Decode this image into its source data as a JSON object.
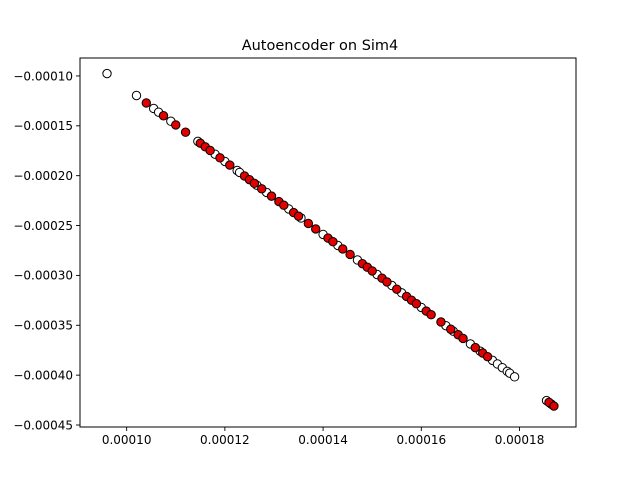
{
  "chart_data": {
    "type": "scatter",
    "title": "Autoencoder on Sim4",
    "xlabel": "",
    "ylabel": "",
    "xlim": [
      9.05e-05,
      0.0001915
    ],
    "ylim": [
      -0.000452,
      -8.2e-05
    ],
    "grid": false,
    "legend": "none",
    "x_ticks": [
      {
        "value": 0.0001,
        "label": "0.00010"
      },
      {
        "value": 0.00012,
        "label": "0.00012"
      },
      {
        "value": 0.00014,
        "label": "0.00014"
      },
      {
        "value": 0.00016,
        "label": "0.00016"
      },
      {
        "value": 0.00018,
        "label": "0.00018"
      }
    ],
    "y_ticks": [
      {
        "value": -0.0001,
        "label": "−0.00010"
      },
      {
        "value": -0.00015,
        "label": "−0.00015"
      },
      {
        "value": -0.0002,
        "label": "−0.00020"
      },
      {
        "value": -0.00025,
        "label": "−0.00025"
      },
      {
        "value": -0.0003,
        "label": "−0.00030"
      },
      {
        "value": -0.00035,
        "label": "−0.00035"
      },
      {
        "value": -0.0004,
        "label": "−0.00040"
      },
      {
        "value": -0.00045,
        "label": "−0.00045"
      }
    ],
    "series": [
      {
        "color": "#ffffff",
        "edge_color": "#000000",
        "points": [
          [
            9.6e-05,
            -9.76e-05
          ],
          [
            0.000102,
            -0.0001196
          ],
          [
            0.0001055,
            -0.0001326
          ],
          [
            0.0001065,
            -0.0001363
          ],
          [
            0.000109,
            -0.0001454
          ],
          [
            0.0001145,
            -0.0001656
          ],
          [
            0.000118,
            -0.0001784
          ],
          [
            0.00012,
            -0.0001857
          ],
          [
            0.0001225,
            -0.0001948
          ],
          [
            0.000123,
            -0.0001967
          ],
          [
            0.0001265,
            -0.0002095
          ],
          [
            0.0001285,
            -0.0002168
          ],
          [
            0.000133,
            -0.0002333
          ],
          [
            0.0001355,
            -0.0002424
          ],
          [
            0.00014,
            -0.0002589
          ],
          [
            0.000143,
            -0.0002699
          ],
          [
            0.000147,
            -0.0002845
          ],
          [
            0.000151,
            -0.0002991
          ],
          [
            0.000154,
            -0.0003101
          ],
          [
            0.000156,
            -0.0003175
          ],
          [
            0.00016,
            -0.0003321
          ],
          [
            0.000165,
            -0.0003504
          ],
          [
            0.0001665,
            -0.0003559
          ],
          [
            0.00017,
            -0.0003687
          ],
          [
            0.000172,
            -0.000376
          ],
          [
            0.0001745,
            -0.0003852
          ],
          [
            0.0001755,
            -0.0003888
          ],
          [
            0.0001765,
            -0.0003925
          ],
          [
            0.0001775,
            -0.0003962
          ],
          [
            0.000178,
            -0.000398
          ],
          [
            0.000179,
            -0.0004017
          ],
          [
            0.0001855,
            -0.0004255
          ],
          [
            0.0001865,
            -0.0004292
          ]
        ]
      },
      {
        "color": "#e00000",
        "edge_color": "#000000",
        "points": [
          [
            0.000104,
            -0.0001271
          ],
          [
            0.0001075,
            -0.0001399
          ],
          [
            0.00011,
            -0.0001491
          ],
          [
            0.000112,
            -0.0001564
          ],
          [
            0.000115,
            -0.0001674
          ],
          [
            0.000116,
            -0.0001711
          ],
          [
            0.000117,
            -0.0001747
          ],
          [
            0.000119,
            -0.0001821
          ],
          [
            0.000121,
            -0.0001894
          ],
          [
            0.000124,
            -0.0002003
          ],
          [
            0.000125,
            -0.000204
          ],
          [
            0.000126,
            -0.0002077
          ],
          [
            0.0001275,
            -0.0002132
          ],
          [
            0.0001295,
            -0.0002205
          ],
          [
            0.000131,
            -0.000226
          ],
          [
            0.000132,
            -0.0002296
          ],
          [
            0.000134,
            -0.000237
          ],
          [
            0.000135,
            -0.0002406
          ],
          [
            0.000137,
            -0.0002479
          ],
          [
            0.0001385,
            -0.0002534
          ],
          [
            0.000141,
            -0.0002626
          ],
          [
            0.000142,
            -0.0002662
          ],
          [
            0.000144,
            -0.0002735
          ],
          [
            0.0001455,
            -0.000279
          ],
          [
            0.000148,
            -0.0002882
          ],
          [
            0.000149,
            -0.0002918
          ],
          [
            0.00015,
            -0.0002955
          ],
          [
            0.000152,
            -0.0003028
          ],
          [
            0.000153,
            -0.0003065
          ],
          [
            0.000155,
            -0.0003138
          ],
          [
            0.000157,
            -0.0003211
          ],
          [
            0.000158,
            -0.0003248
          ],
          [
            0.000159,
            -0.0003284
          ],
          [
            0.000161,
            -0.0003358
          ],
          [
            0.000162,
            -0.0003394
          ],
          [
            0.000164,
            -0.0003467
          ],
          [
            0.000166,
            -0.000354
          ],
          [
            0.0001675,
            -0.0003595
          ],
          [
            0.0001685,
            -0.0003632
          ],
          [
            0.000171,
            -0.0003724
          ],
          [
            0.0001725,
            -0.0003778
          ],
          [
            0.0001735,
            -0.0003815
          ],
          [
            0.000186,
            -0.0004273
          ],
          [
            0.000187,
            -0.000431
          ]
        ]
      }
    ]
  }
}
